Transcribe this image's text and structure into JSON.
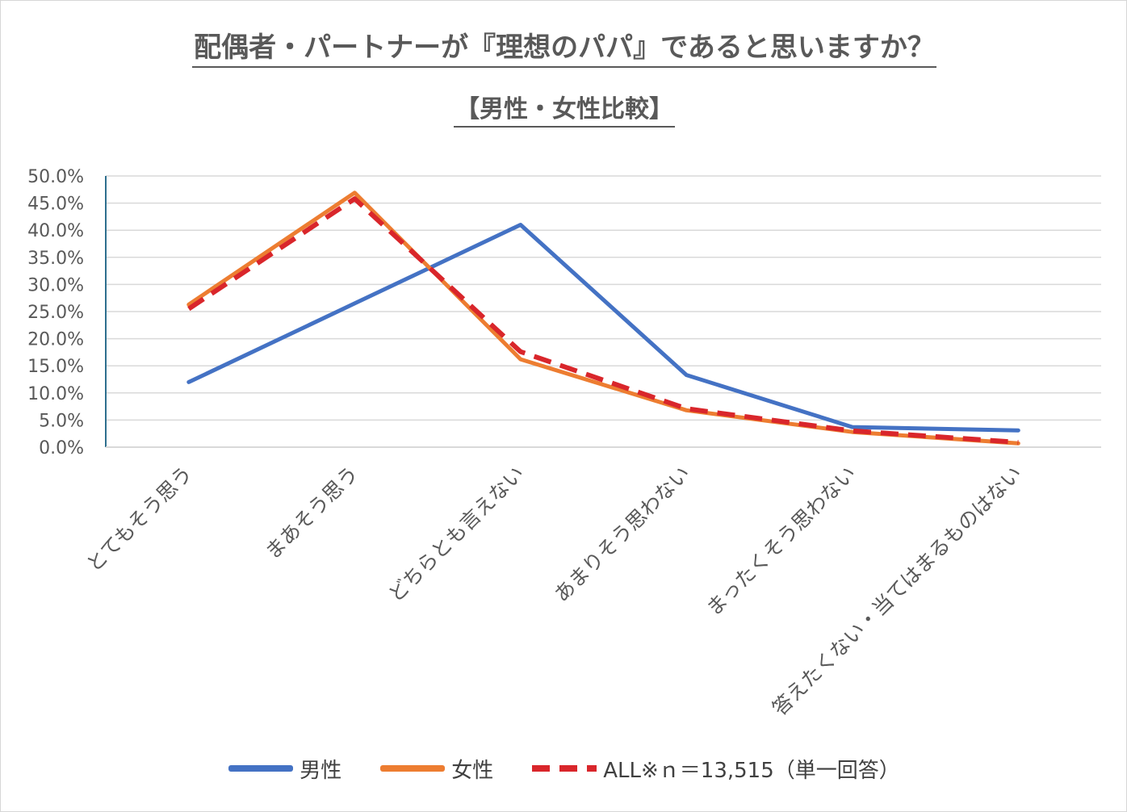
{
  "title": "配偶者・パートナーが『理想のパパ』であると思いますか？",
  "subtitle": "【男性・女性比較】",
  "chart_data": {
    "type": "line",
    "title": "配偶者・パートナーが『理想のパパ』であると思いますか？",
    "subtitle": "【男性・女性比較】",
    "categories": [
      "とてもそう思う",
      "まあそう思う",
      "どちらとも言えない",
      "あまりそう思わない",
      "まったくそう思わない",
      "答えたくない・当てはまるものはない"
    ],
    "y_tick_labels": [
      "0.0%",
      "5.0%",
      "10.0%",
      "15.0%",
      "20.0%",
      "25.0%",
      "30.0%",
      "35.0%",
      "40.0%",
      "45.0%",
      "50.0%"
    ],
    "ylim": [
      0,
      50
    ],
    "grid": true,
    "legend_position": "bottom",
    "series": [
      {
        "name": "男性",
        "values": [
          12.0,
          26.5,
          41.0,
          13.3,
          3.7,
          3.1
        ],
        "color": "#4472c4",
        "style": "solid"
      },
      {
        "name": "女性",
        "values": [
          26.3,
          46.9,
          16.2,
          6.8,
          2.8,
          0.7
        ],
        "color": "#ed7d31",
        "style": "solid"
      },
      {
        "name": "ALL※ｎ＝13,515（単一回答）",
        "values": [
          25.5,
          45.8,
          17.6,
          7.1,
          3.0,
          0.9
        ],
        "color": "#d9262b",
        "style": "dashed"
      }
    ]
  }
}
